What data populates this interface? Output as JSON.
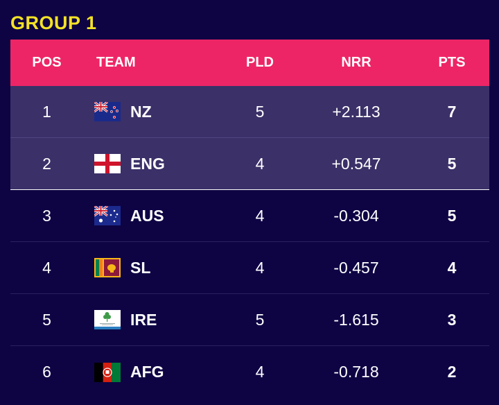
{
  "title": "GROUP 1",
  "columns": {
    "pos": "POS",
    "team": "TEAM",
    "pld": "PLD",
    "nrr": "NRR",
    "pts": "PTS"
  },
  "rows": [
    {
      "pos": "1",
      "team": "NZ",
      "flag": "new-zealand-flag-icon",
      "pld": "5",
      "nrr": "+2.113",
      "pts": "7"
    },
    {
      "pos": "2",
      "team": "ENG",
      "flag": "england-flag-icon",
      "pld": "4",
      "nrr": "+0.547",
      "pts": "5"
    },
    {
      "pos": "3",
      "team": "AUS",
      "flag": "australia-flag-icon",
      "pld": "4",
      "nrr": "-0.304",
      "pts": "5"
    },
    {
      "pos": "4",
      "team": "SL",
      "flag": "sri-lanka-flag-icon",
      "pld": "4",
      "nrr": "-0.457",
      "pts": "4"
    },
    {
      "pos": "5",
      "team": "IRE",
      "flag": "ireland-cricket-flag-icon",
      "pld": "5",
      "nrr": "-1.615",
      "pts": "3"
    },
    {
      "pos": "6",
      "team": "AFG",
      "flag": "afghanistan-flag-icon",
      "pld": "4",
      "nrr": "-0.718",
      "pts": "2"
    }
  ],
  "colors": {
    "background": "#0e0444",
    "title": "#f3e225",
    "header": "#ed2566",
    "highlight_row": "#3b3068"
  }
}
